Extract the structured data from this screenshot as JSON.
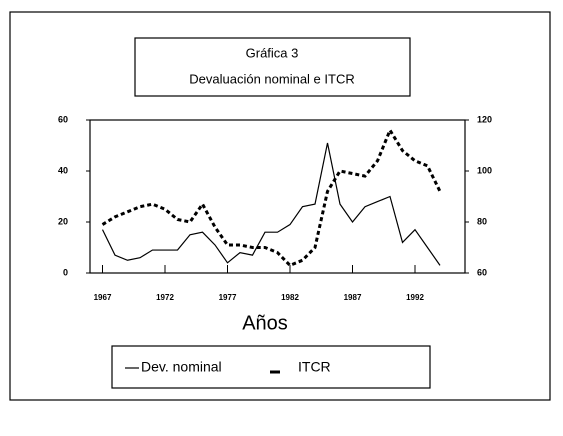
{
  "chart_data": {
    "type": "line",
    "title": "Gráfica 3",
    "subtitle": "Devaluación nominal e ITCR",
    "x_label": "Años",
    "x": [
      1967,
      1968,
      1969,
      1970,
      1971,
      1972,
      1973,
      1974,
      1975,
      1976,
      1977,
      1978,
      1979,
      1980,
      1981,
      1982,
      1983,
      1984,
      1985,
      1986,
      1987,
      1988,
      1989,
      1990,
      1991,
      1992,
      1993,
      1994
    ],
    "series": [
      {
        "name": "Dev. nominal",
        "color": "#000000",
        "style": "solid",
        "values": [
          17,
          7,
          5,
          6,
          9,
          9,
          9,
          15,
          16,
          11,
          4,
          8,
          7,
          16,
          16,
          19,
          26,
          27,
          51,
          27,
          20,
          26,
          28,
          30,
          12,
          17,
          10,
          3
        ]
      },
      {
        "name": "ITCR",
        "color": "#000000",
        "style": "dashed",
        "axis": "y2",
        "values": [
          79,
          82,
          84,
          86,
          87,
          85,
          81,
          80,
          87,
          78,
          71,
          71,
          70,
          70,
          68,
          63,
          65,
          70,
          92,
          100,
          99,
          98,
          104,
          116,
          108,
          104,
          102,
          92
        ]
      }
    ],
    "xlim": [
      1966,
      1996
    ],
    "xticks": [
      1967,
      1972,
      1977,
      1982,
      1987,
      1992
    ],
    "ylim": [
      0,
      60
    ],
    "yticks": [
      0,
      20,
      40,
      60
    ],
    "y2lim": [
      60,
      120
    ],
    "y2ticks": [
      60,
      80,
      100,
      120
    ]
  }
}
